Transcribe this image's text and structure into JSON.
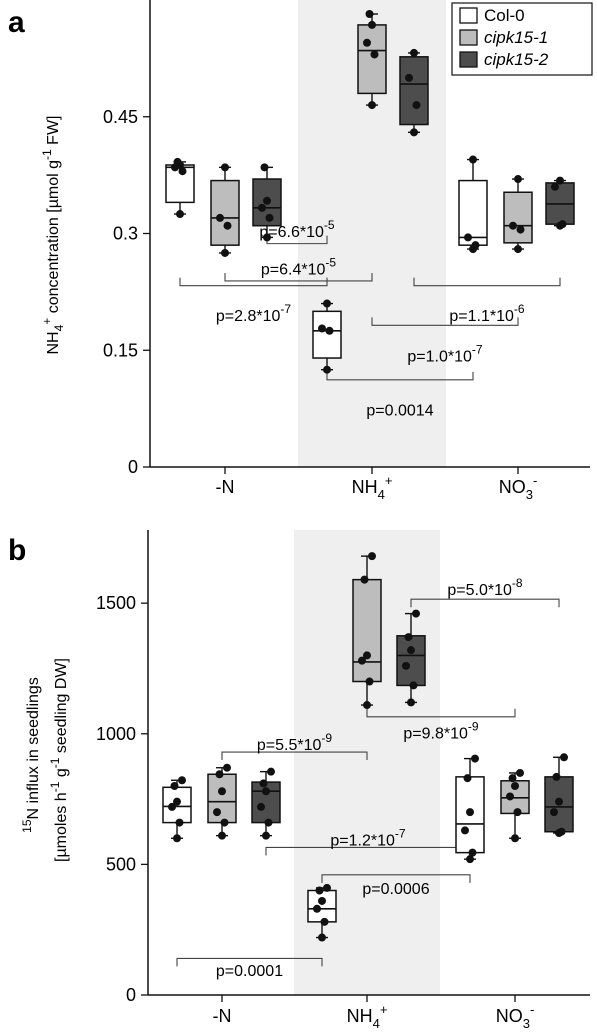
{
  "colors": {
    "Col-0": "#ffffff",
    "cipk15-1": "#bdbdbd",
    "cipk15-2": "#4d4d4d",
    "shade": "#efefef",
    "ink": "#111111"
  },
  "legend": [
    "Col-0",
    "cipk15-1",
    "cipk15-2"
  ],
  "chart_data": [
    {
      "type": "box",
      "panel": "a",
      "ylabel_main": "NH",
      "ylabel_sub": "4",
      "ylabel_sup": "+",
      "ylabel_rest": " concentration [µmol g",
      "ylabel_sup2": "-1",
      "ylabel_end": " FW]",
      "categories": [
        "-N",
        "NH4+",
        "NO3-"
      ],
      "cat_display": [
        {
          "base": "-N",
          "sub": "",
          "sup": ""
        },
        {
          "base": "NH",
          "sub": "4",
          "sup": "+"
        },
        {
          "base": "NO",
          "sub": "3",
          "sup": "-"
        }
      ],
      "shaded_category": 1,
      "ylim": [
        0,
        0.6
      ],
      "yticks": [
        0,
        0.15,
        0.3,
        0.45
      ],
      "ytick_labels": [
        "0",
        "0.15",
        "0.3",
        "0.45"
      ],
      "series": [
        {
          "name": "Col-0",
          "boxes": [
            {
              "cat": 0,
              "min": 0.325,
              "q1": 0.34,
              "median": 0.385,
              "q3": 0.388,
              "max": 0.392,
              "points": [
                0.325,
                0.38,
                0.385,
                0.388,
                0.392
              ]
            },
            {
              "cat": 1,
              "min": 0.125,
              "q1": 0.14,
              "median": 0.175,
              "q3": 0.2,
              "max": 0.21,
              "points": [
                0.125,
                0.175,
                0.178,
                0.21
              ]
            },
            {
              "cat": 2,
              "min": 0.28,
              "q1": 0.285,
              "median": 0.295,
              "q3": 0.368,
              "max": 0.395,
              "points": [
                0.28,
                0.285,
                0.295,
                0.395
              ]
            }
          ]
        },
        {
          "name": "cipk15-1",
          "boxes": [
            {
              "cat": 0,
              "min": 0.275,
              "q1": 0.285,
              "median": 0.32,
              "q3": 0.368,
              "max": 0.385,
              "points": [
                0.275,
                0.31,
                0.32,
                0.385
              ]
            },
            {
              "cat": 1,
              "min": 0.465,
              "q1": 0.48,
              "median": 0.535,
              "q3": 0.568,
              "max": 0.582,
              "points": [
                0.465,
                0.53,
                0.545,
                0.568,
                0.582
              ]
            },
            {
              "cat": 2,
              "min": 0.28,
              "q1": 0.288,
              "median": 0.31,
              "q3": 0.353,
              "max": 0.37,
              "points": [
                0.28,
                0.305,
                0.31,
                0.37
              ]
            }
          ]
        },
        {
          "name": "cipk15-2",
          "boxes": [
            {
              "cat": 0,
              "min": 0.295,
              "q1": 0.31,
              "median": 0.333,
              "q3": 0.37,
              "max": 0.385,
              "points": [
                0.295,
                0.32,
                0.333,
                0.342,
                0.385
              ]
            },
            {
              "cat": 1,
              "min": 0.43,
              "q1": 0.44,
              "median": 0.492,
              "q3": 0.527,
              "max": 0.532,
              "points": [
                0.43,
                0.465,
                0.5,
                0.532
              ]
            },
            {
              "cat": 2,
              "min": 0.31,
              "q1": 0.312,
              "median": 0.338,
              "q3": 0.365,
              "max": 0.368,
              "points": [
                0.31,
                0.312,
                0.36,
                0.368
              ]
            }
          ]
        }
      ],
      "annotations": [
        {
          "text": "p=6.6*10",
          "sup": "-5",
          "from": [
            0,
            2
          ],
          "to": [
            1,
            0
          ],
          "level": 0.287,
          "text_y": 0.303,
          "dir": "up"
        },
        {
          "text": "p=6.4*10",
          "sup": "-5",
          "from": [
            0,
            1
          ],
          "to": [
            1,
            1
          ],
          "level": 0.239,
          "text_y": 0.255,
          "dir": "up"
        },
        {
          "text": "p=2.8*10",
          "sup": "-7",
          "from": [
            0,
            0
          ],
          "to": [
            1,
            0
          ],
          "level": 0.233,
          "text_y": 0.195,
          "dir": "up"
        },
        {
          "text": "p=1.1*10",
          "sup": "-6",
          "from": [
            1,
            2
          ],
          "to": [
            2,
            2
          ],
          "level": 0.233,
          "text_y": 0.195,
          "dir": "up"
        },
        {
          "text": "p=1.0*10",
          "sup": "-7",
          "from": [
            1,
            1
          ],
          "to": [
            2,
            1
          ],
          "level": 0.182,
          "text_y": 0.143,
          "dir": "up"
        },
        {
          "text": "p=0.0014",
          "sup": "",
          "from": [
            1,
            0
          ],
          "to": [
            2,
            0
          ],
          "level": 0.112,
          "text_y": 0.074,
          "dir": "up"
        }
      ]
    },
    {
      "type": "box",
      "panel": "b",
      "ylabel_line1_sup": "15",
      "ylabel_line1": "N influx in seedlings",
      "ylabel_line2_a": "[µmoles h",
      "ylabel_line2_sup1": "-1",
      "ylabel_line2_b": " g",
      "ylabel_line2_sup2": "-1",
      "ylabel_line2_c": " seedling DW]",
      "categories": [
        "-N",
        "NH4+",
        "NO3-"
      ],
      "cat_display": [
        {
          "base": "-N",
          "sub": "",
          "sup": ""
        },
        {
          "base": "NH",
          "sub": "4",
          "sup": "+"
        },
        {
          "base": "NO",
          "sub": "3",
          "sup": "-"
        }
      ],
      "shaded_category": 1,
      "ylim": [
        0,
        1780
      ],
      "yticks": [
        0,
        500,
        1000,
        1500
      ],
      "ytick_labels": [
        "0",
        "500",
        "1000",
        "1500"
      ],
      "series": [
        {
          "name": "Col-0",
          "boxes": [
            {
              "cat": 0,
              "min": 600,
              "q1": 660,
              "median": 722,
              "q3": 795,
              "max": 822,
              "points": [
                600,
                660,
                720,
                740,
                800,
                822
              ]
            },
            {
              "cat": 1,
              "min": 220,
              "q1": 280,
              "median": 330,
              "q3": 400,
              "max": 410,
              "points": [
                220,
                280,
                330,
                360,
                400,
                410
              ]
            },
            {
              "cat": 2,
              "min": 520,
              "q1": 545,
              "median": 655,
              "q3": 835,
              "max": 905,
              "points": [
                520,
                545,
                630,
                700,
                830,
                905
              ]
            }
          ]
        },
        {
          "name": "cipk15-1",
          "boxes": [
            {
              "cat": 0,
              "min": 610,
              "q1": 660,
              "median": 740,
              "q3": 845,
              "max": 870,
              "points": [
                610,
                660,
                700,
                780,
                845,
                870
              ]
            },
            {
              "cat": 1,
              "min": 1110,
              "q1": 1200,
              "median": 1275,
              "q3": 1590,
              "max": 1680,
              "points": [
                1110,
                1200,
                1280,
                1300,
                1590,
                1680
              ]
            },
            {
              "cat": 2,
              "min": 600,
              "q1": 695,
              "median": 755,
              "q3": 820,
              "max": 850,
              "points": [
                600,
                700,
                760,
                800,
                830,
                850
              ]
            }
          ]
        },
        {
          "name": "cipk15-2",
          "boxes": [
            {
              "cat": 0,
              "min": 610,
              "q1": 660,
              "median": 780,
              "q3": 815,
              "max": 855,
              "points": [
                610,
                660,
                720,
                780,
                810,
                855
              ]
            },
            {
              "cat": 1,
              "min": 1120,
              "q1": 1185,
              "median": 1300,
              "q3": 1375,
              "max": 1460,
              "points": [
                1120,
                1185,
                1260,
                1320,
                1370,
                1460
              ]
            },
            {
              "cat": 2,
              "min": 620,
              "q1": 625,
              "median": 720,
              "q3": 835,
              "max": 910,
              "points": [
                620,
                625,
                700,
                740,
                835,
                910
              ]
            }
          ]
        }
      ],
      "annotations": [
        {
          "text": "p=5.0*10",
          "sup": "-8",
          "from": [
            1,
            2
          ],
          "to": [
            2,
            2
          ],
          "level": 1515,
          "text_y": 1555,
          "dir": "down"
        },
        {
          "text": "p=5.5*10",
          "sup": "-9",
          "from": [
            0,
            1
          ],
          "to": [
            1,
            1
          ],
          "level": 930,
          "text_y": 960,
          "dir": "down"
        },
        {
          "text": "p=9.8*10",
          "sup": "-9",
          "from": [
            1,
            1
          ],
          "to": [
            2,
            1
          ],
          "level": 1065,
          "text_y": 1005,
          "dir": "up"
        },
        {
          "text": "p=1.2*10",
          "sup": "-7",
          "from": [
            0,
            2
          ],
          "to": [
            2,
            0
          ],
          "level": 565,
          "text_y": 595,
          "dir": "down"
        },
        {
          "text": "p=0.0006",
          "sup": "",
          "from": [
            1,
            0
          ],
          "to": [
            2,
            0
          ],
          "level": 460,
          "text_y": 410,
          "dir": "down"
        },
        {
          "text": "p=0.0001",
          "sup": "",
          "from": [
            0,
            0
          ],
          "to": [
            1,
            0
          ],
          "level": 140,
          "text_y": 95,
          "dir": "down"
        }
      ]
    }
  ]
}
